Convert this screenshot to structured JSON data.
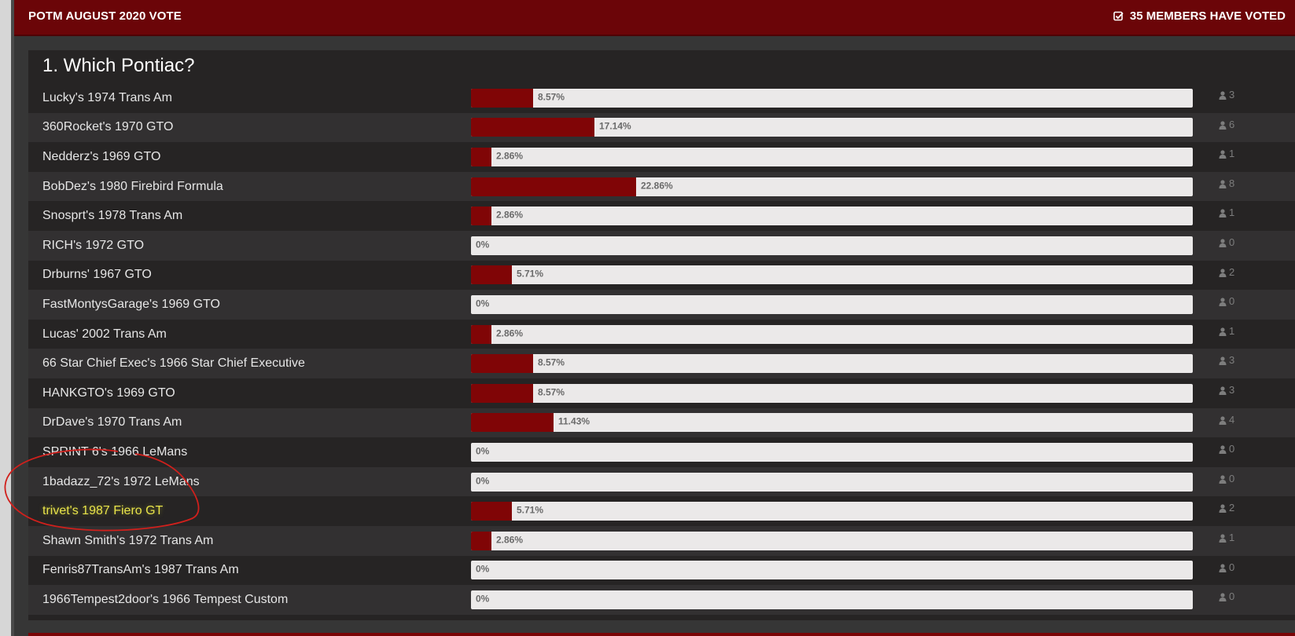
{
  "header": {
    "title": "POTM AUGUST 2020 VOTE",
    "votes_label": "35 MEMBERS HAVE VOTED",
    "check_icon": "check-square-icon"
  },
  "poll": {
    "question": "1. Which Pontiac?",
    "accent_color": "#800506",
    "user_icon": "user-icon",
    "options": [
      {
        "label": "Lucky's 1974 Trans Am",
        "percent_text": "8.57%",
        "percent": 8.57,
        "count": "3"
      },
      {
        "label": "360Rocket's 1970 GTO",
        "percent_text": "17.14%",
        "percent": 17.14,
        "count": "6"
      },
      {
        "label": "Nedderz's 1969 GTO",
        "percent_text": "2.86%",
        "percent": 2.86,
        "count": "1"
      },
      {
        "label": "BobDez's 1980 Firebird Formula",
        "percent_text": "22.86%",
        "percent": 22.86,
        "count": "8"
      },
      {
        "label": "Snosprt's 1978 Trans Am",
        "percent_text": "2.86%",
        "percent": 2.86,
        "count": "1"
      },
      {
        "label": "RICH's 1972 GTO",
        "percent_text": "0%",
        "percent": 0,
        "count": "0"
      },
      {
        "label": "Drburns' 1967 GTO",
        "percent_text": "5.71%",
        "percent": 5.71,
        "count": "2"
      },
      {
        "label": "FastMontysGarage's 1969 GTO",
        "percent_text": "0%",
        "percent": 0,
        "count": "0"
      },
      {
        "label": "Lucas' 2002 Trans Am",
        "percent_text": "2.86%",
        "percent": 2.86,
        "count": "1"
      },
      {
        "label": "66 Star Chief Exec's 1966 Star Chief Executive",
        "percent_text": "8.57%",
        "percent": 8.57,
        "count": "3"
      },
      {
        "label": "HANKGTO's 1969 GTO",
        "percent_text": "8.57%",
        "percent": 8.57,
        "count": "3"
      },
      {
        "label": "DrDave's 1970 Trans Am",
        "percent_text": "11.43%",
        "percent": 11.43,
        "count": "4"
      },
      {
        "label": "SPRINT 6's 1966 LeMans",
        "percent_text": "0%",
        "percent": 0,
        "count": "0"
      },
      {
        "label": "1badazz_72's 1972 LeMans",
        "percent_text": "0%",
        "percent": 0,
        "count": "0"
      },
      {
        "label": "trivet's 1987 Fiero GT",
        "percent_text": "5.71%",
        "percent": 5.71,
        "count": "2",
        "highlighted": true
      },
      {
        "label": "Shawn Smith's 1972 Trans Am",
        "percent_text": "2.86%",
        "percent": 2.86,
        "count": "1"
      },
      {
        "label": "Fenris87TransAm's 1987 Trans Am",
        "percent_text": "0%",
        "percent": 0,
        "count": "0"
      },
      {
        "label": "1966Tempest2door's 1966 Tempest Custom",
        "percent_text": "0%",
        "percent": 0,
        "count": "0"
      }
    ]
  }
}
